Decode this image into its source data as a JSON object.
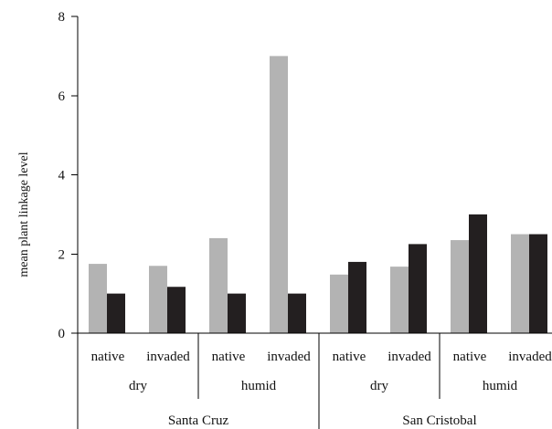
{
  "chart_data": {
    "type": "bar",
    "title": "",
    "xlabel": "",
    "ylabel": "mean plant linkage level",
    "ylim": [
      0,
      8
    ],
    "yticks": [
      0,
      2,
      4,
      6,
      8
    ],
    "grid": false,
    "legend": "none",
    "categories": [
      "native",
      "invaded",
      "native",
      "invaded",
      "native",
      "invaded",
      "native",
      "invaded"
    ],
    "habitat_groups": [
      {
        "label": "dry",
        "span": 2
      },
      {
        "label": "humid",
        "span": 2
      },
      {
        "label": "dry",
        "span": 2
      },
      {
        "label": "humid",
        "span": 2
      }
    ],
    "island_groups": [
      {
        "label": "Santa Cruz",
        "span": 4
      },
      {
        "label": "San Cristobal",
        "span": 4
      }
    ],
    "series": [
      {
        "color": "#b3b3b3",
        "values": [
          1.75,
          1.7,
          2.4,
          7.0,
          1.48,
          1.68,
          2.35,
          2.5
        ]
      },
      {
        "color": "#231f20",
        "values": [
          1.0,
          1.17,
          1.0,
          1.0,
          1.8,
          2.25,
          3.0,
          2.5
        ]
      }
    ]
  }
}
